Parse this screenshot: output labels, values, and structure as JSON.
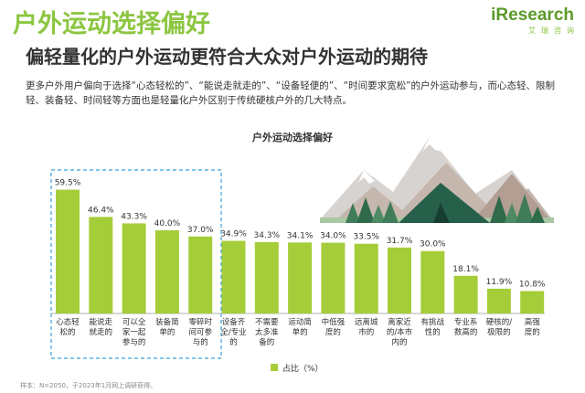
{
  "page": {
    "title": "户外运动选择偏好",
    "subtitle": "偏轻量化的户外运动更符合大众对户外运动的期待",
    "description": "更多户外用户偏向于选择“心态轻松的”、“能说走就走的”、“设备轻便的”、“时间要求宽松”的户外运动参与，而心态轻、限制轻、装备轻、时间轻等方面也是轻量化户外区别于传统硬核户外的几大特点。",
    "logo_main": "iResearch",
    "logo_sub": "艾瑞咨询",
    "footnote": "样本：N=2050，于2023年1月网上调研获得。"
  },
  "colors": {
    "bar": "#a5cd39",
    "title": "#8cc641",
    "highlight_box": "#3ba0e0"
  },
  "chart_data": {
    "type": "bar",
    "title": "户外运动选择偏好",
    "categories": [
      [
        "心态轻",
        "松的"
      ],
      [
        "能说走",
        "就走的"
      ],
      [
        "可以全",
        "家一起",
        "参与的"
      ],
      [
        "装备简",
        "单的"
      ],
      [
        "零碎时",
        "间可参",
        "与的"
      ],
      [
        "设备齐",
        "全/专业",
        "的"
      ],
      [
        "不需要",
        "太多准",
        "备的"
      ],
      [
        "运动简",
        "单的"
      ],
      [
        "中低强",
        "度的"
      ],
      [
        "远离城",
        "市的"
      ],
      [
        "离家近",
        "的/本市",
        "内的"
      ],
      [
        "有挑战",
        "性的"
      ],
      [
        "专业系",
        "数高的"
      ],
      [
        "硬核的/",
        "极限的"
      ],
      [
        "高强",
        "度的"
      ]
    ],
    "values": [
      59.5,
      46.4,
      43.3,
      40.0,
      37.0,
      34.9,
      34.3,
      34.1,
      34.0,
      33.5,
      31.7,
      30.0,
      18.1,
      11.9,
      10.8
    ],
    "value_labels": [
      "59.5%",
      "46.4%",
      "43.3%",
      "40.0%",
      "37.0%",
      "34.9%",
      "34.3%",
      "34.1%",
      "34.0%",
      "33.5%",
      "31.7%",
      "30.0%",
      "18.1%",
      "11.9%",
      "10.8%"
    ],
    "legend": "占比（%）",
    "highlighted_count": 5,
    "ylim": [
      0,
      65
    ]
  }
}
